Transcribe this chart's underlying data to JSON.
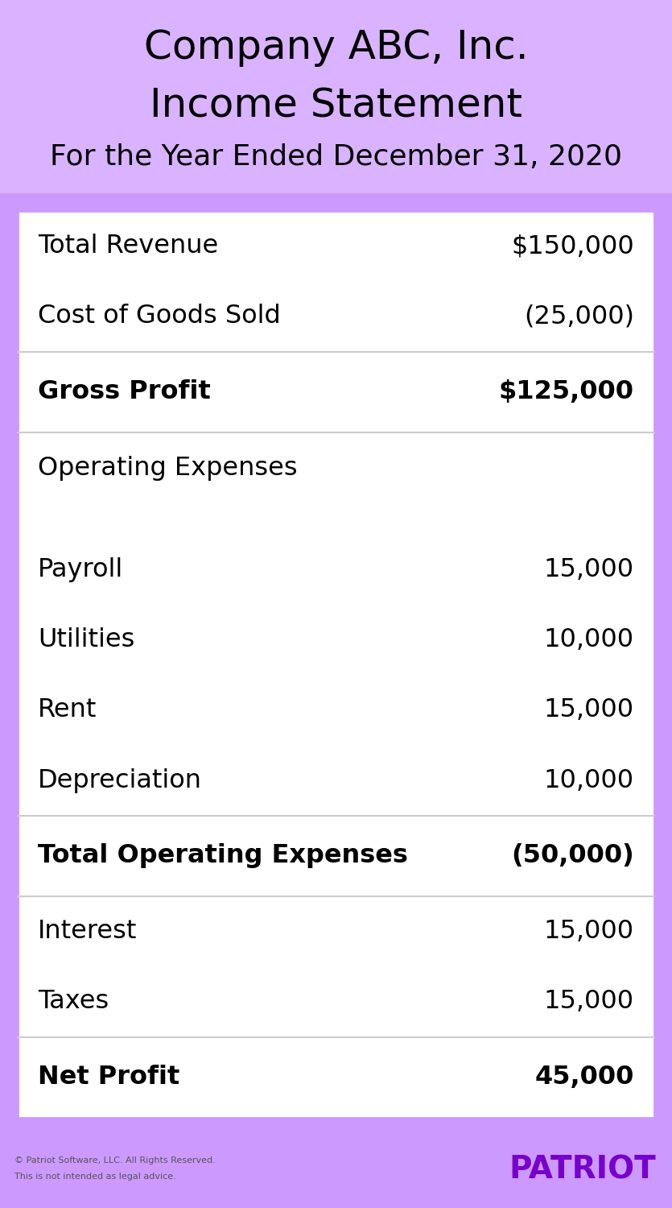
{
  "title_line1": "Company ABC, Inc.",
  "title_line2": "Income Statement",
  "title_line3": "For the Year Ended December 31, 2020",
  "header_bg": "#d9b3ff",
  "header_text_color": "#000000",
  "table_bg": "#ffffff",
  "outer_bg": "#cc99ff",
  "footer_line_color": "#cc99ff",
  "patriot_color": "#7700cc",
  "footer_text_color": "#555555",
  "separator_color": "#cccccc",
  "rows": [
    {
      "label": "Total Revenue",
      "value": "$150,000",
      "bold": false,
      "separator_above": false,
      "spacer_above": false
    },
    {
      "label": "Cost of Goods Sold",
      "value": "(25,000)",
      "bold": false,
      "separator_above": false,
      "spacer_above": false
    },
    {
      "label": "Gross Profit",
      "value": "$125,000",
      "bold": true,
      "separator_above": true,
      "spacer_above": false
    },
    {
      "label": "Operating Expenses",
      "value": "",
      "bold": false,
      "separator_above": true,
      "spacer_above": false
    },
    {
      "label": "Payroll",
      "value": "15,000",
      "bold": false,
      "separator_above": false,
      "spacer_above": false
    },
    {
      "label": "Utilities",
      "value": "10,000",
      "bold": false,
      "separator_above": false,
      "spacer_above": false
    },
    {
      "label": "Rent",
      "value": "15,000",
      "bold": false,
      "separator_above": false,
      "spacer_above": false
    },
    {
      "label": "Depreciation",
      "value": "10,000",
      "bold": false,
      "separator_above": false,
      "spacer_above": false
    },
    {
      "label": "Total Operating Expenses",
      "value": "(50,000)",
      "bold": true,
      "separator_above": true,
      "spacer_above": false
    },
    {
      "label": "Interest",
      "value": "15,000",
      "bold": false,
      "separator_above": true,
      "spacer_above": false
    },
    {
      "label": "Taxes",
      "value": "15,000",
      "bold": false,
      "separator_above": false,
      "spacer_above": false
    },
    {
      "label": "Net Profit",
      "value": "45,000",
      "bold": true,
      "separator_above": true,
      "spacer_above": false
    }
  ],
  "footer_left_line1": "© Patriot Software, LLC. All Rights Reserved.",
  "footer_left_line2": "This is not intended as legal advice.",
  "footer_right": "PATRIOT"
}
